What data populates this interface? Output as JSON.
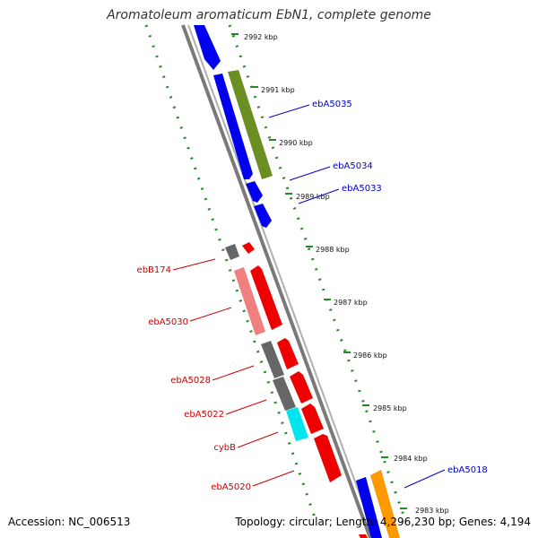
{
  "title": "Aromatoleum aromaticum EbN1, complete genome",
  "footer": {
    "accession": "Accession: NC_006513",
    "summary": "Topology: circular; Length: 4,296,230 bp; Genes: 4,194"
  },
  "ruler": {
    "unit": "kbp",
    "ticks": [
      {
        "kbp": 2992,
        "label": "2992 kbp"
      },
      {
        "kbp": 2991,
        "label": "2991 kbp"
      },
      {
        "kbp": 2990,
        "label": "2990 kbp"
      },
      {
        "kbp": 2989,
        "label": "2989 kbp"
      },
      {
        "kbp": 2988,
        "label": "2988 kbp"
      },
      {
        "kbp": 2987,
        "label": "2987 kbp"
      },
      {
        "kbp": 2986,
        "label": "2986 kbp"
      },
      {
        "kbp": 2985,
        "label": "2985 kbp"
      },
      {
        "kbp": 2984,
        "label": "2984 kbp"
      },
      {
        "kbp": 2983,
        "label": "2983 kbp"
      }
    ]
  },
  "colors": {
    "forward_cds": "#0000ee",
    "forward_other": "#6b8e23",
    "forward_orange": "#ff9900",
    "reverse_cds": "#ee0000",
    "reverse_pink": "#f08080",
    "reverse_gray": "#666666",
    "reverse_cyan": "#00e5ee",
    "backbone": "#888888",
    "label_forward": "#0000cc",
    "label_reverse": "#cc0000",
    "tick_green": "#228b22"
  },
  "gene_labels": [
    {
      "text": "ebA5035",
      "strand": "forward"
    },
    {
      "text": "ebA5034",
      "strand": "forward"
    },
    {
      "text": "ebA5033",
      "strand": "forward"
    },
    {
      "text": "ebA5018",
      "strand": "forward"
    },
    {
      "text": "ebB174",
      "strand": "reverse"
    },
    {
      "text": "ebA5030",
      "strand": "reverse"
    },
    {
      "text": "ebA5028",
      "strand": "reverse"
    },
    {
      "text": "ebA5022",
      "strand": "reverse"
    },
    {
      "text": "cybB",
      "strand": "reverse"
    },
    {
      "text": "ebA5020",
      "strand": "reverse"
    }
  ]
}
